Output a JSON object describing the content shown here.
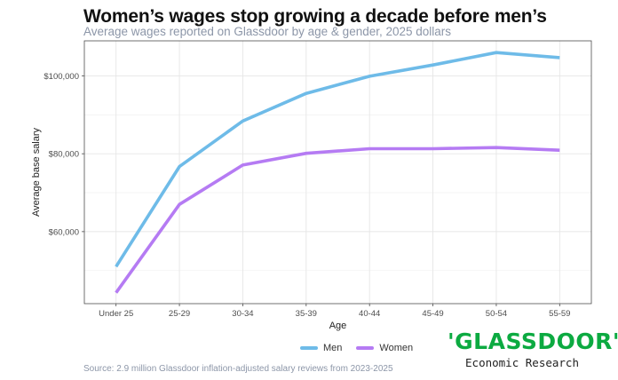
{
  "header": {
    "title": "Women’s wages stop growing a decade before men’s",
    "subtitle": "Average wages reported on Glassdoor by age & gender, 2025 dollars"
  },
  "footer": {
    "source": "Source: 2.9 million Glassdoor inflation-adjusted salary reviews from 2023-2025"
  },
  "brand": {
    "logo_text": "'GLASSDOOR'",
    "tagline": "Economic Research",
    "logo_color": "#0caa41"
  },
  "chart_data": {
    "type": "line",
    "title": "Women’s wages stop growing a decade before men’s",
    "subtitle": "Average wages reported on Glassdoor by age & gender, 2025 dollars",
    "xlabel": "Age",
    "ylabel": "Average base salary",
    "categories": [
      "Under 25",
      "25-29",
      "30-34",
      "35-39",
      "40-44",
      "45-49",
      "50-54",
      "55-59"
    ],
    "series": [
      {
        "name": "Men",
        "color": "#6ebbe8",
        "values": [
          51000,
          76700,
          88400,
          95500,
          99900,
          102800,
          106000,
          104700
        ]
      },
      {
        "name": "Women",
        "color": "#b57bf3",
        "values": [
          44300,
          67000,
          77100,
          80100,
          81300,
          81300,
          81600,
          80900
        ]
      }
    ],
    "ylim": [
      41500,
      109000
    ],
    "yticks": [
      60000,
      80000,
      100000
    ],
    "ytick_labels": [
      "$60,000",
      "$80,000",
      "$100,000"
    ],
    "grid": true,
    "legend_position": "bottom"
  }
}
